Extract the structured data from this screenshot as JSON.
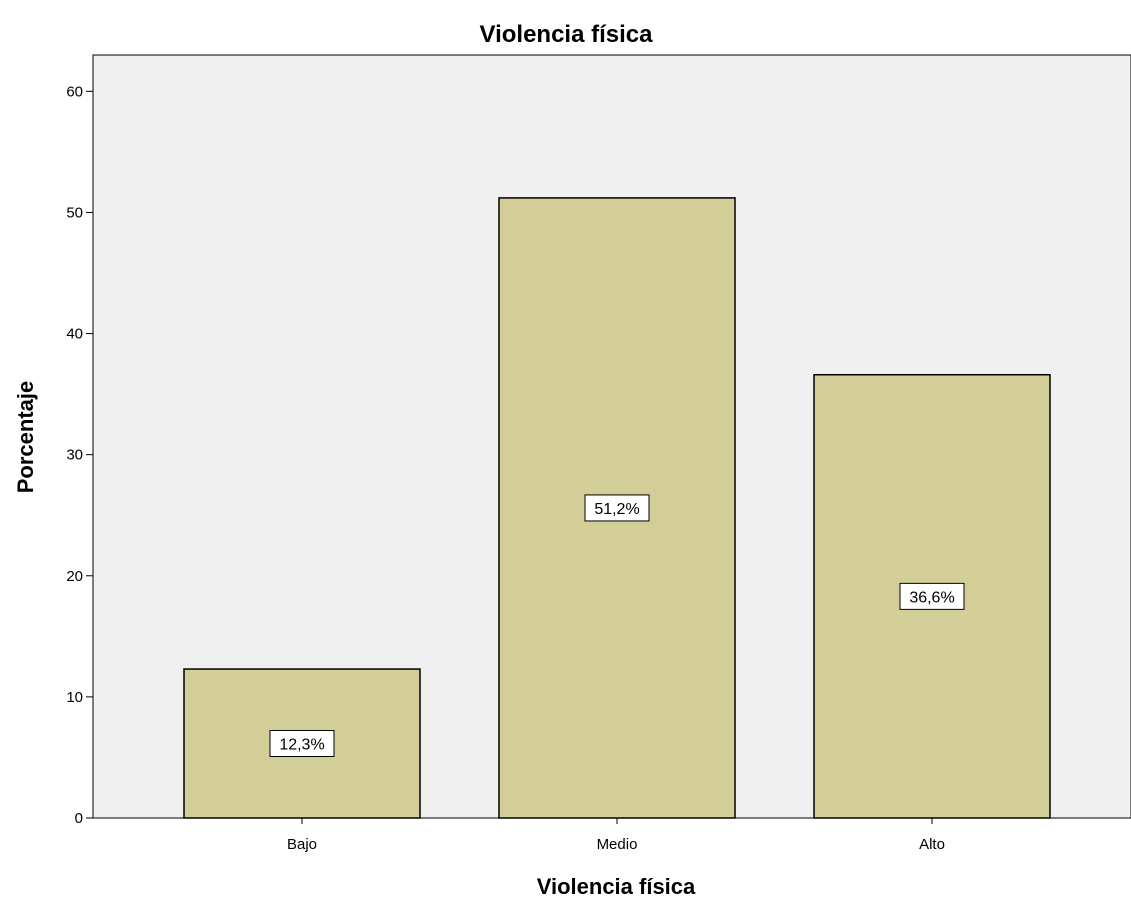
{
  "chart_data": {
    "type": "bar",
    "title": "Violencia física",
    "xlabel": "Violencia física",
    "ylabel": "Porcentaje",
    "categories": [
      "Bajo",
      "Medio",
      "Alto"
    ],
    "values": [
      12.3,
      51.2,
      36.6
    ],
    "data_labels": [
      "12,3%",
      "51,2%",
      "36,6%"
    ],
    "ylim": [
      0,
      63
    ],
    "yticks": [
      0,
      10,
      20,
      30,
      40,
      50,
      60
    ],
    "ytick_labels": [
      "0",
      "10",
      "20",
      "30",
      "40",
      "50",
      "60"
    ],
    "grid": false,
    "legend": "none",
    "colors": {
      "bar_fill": "#d3ce98",
      "bar_stroke": "#000000",
      "plot_background": "#f0f0f0",
      "label_box_fill": "#ffffff"
    }
  }
}
